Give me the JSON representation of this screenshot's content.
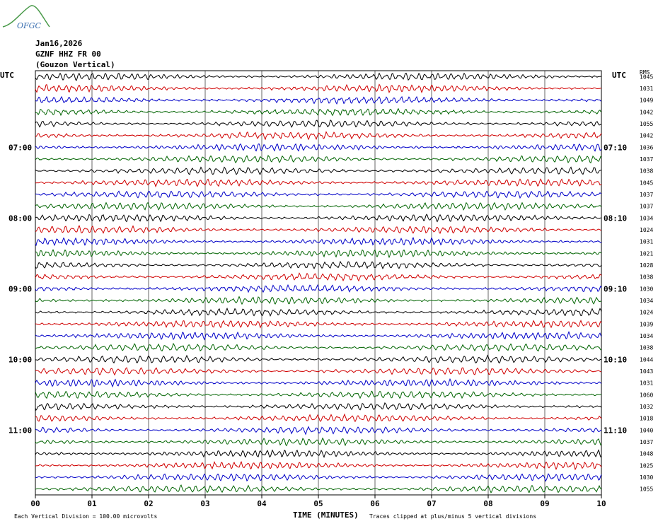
{
  "logo": {
    "text": "OFGC",
    "color": "#3a6fb0",
    "mountain_color": "#4a9a4a"
  },
  "header": {
    "date": "Jan16,2026",
    "station": "GZNF HHZ FR 00",
    "location": "(Gouzon Vertical)"
  },
  "chart_data": {
    "type": "line",
    "title": "",
    "xlabel": "TIME (MINUTES)",
    "ylabel": "UTC",
    "x_ticks": [
      "00",
      "01",
      "02",
      "03",
      "04",
      "05",
      "06",
      "07",
      "08",
      "09",
      "10"
    ],
    "xlim": [
      0,
      10
    ],
    "left_axis_title": "UTC",
    "right_axis_title": "UTC",
    "rms_title": "RMS",
    "left_time_labels": [
      {
        "row": 6,
        "label": "07:00"
      },
      {
        "row": 12,
        "label": "08:00"
      },
      {
        "row": 18,
        "label": "09:00"
      },
      {
        "row": 24,
        "label": "10:00"
      },
      {
        "row": 30,
        "label": "11:00"
      }
    ],
    "right_time_labels": [
      {
        "row": 6,
        "label": "07:10"
      },
      {
        "row": 12,
        "label": "08:10"
      },
      {
        "row": 18,
        "label": "09:10"
      },
      {
        "row": 24,
        "label": "10:10"
      },
      {
        "row": 30,
        "label": "11:10"
      }
    ],
    "row_colors": [
      "#000000",
      "#d00000",
      "#0000c8",
      "#006400"
    ],
    "trace_count": 36,
    "rms_values": [
      "1045",
      "1031",
      "1049",
      "1042",
      "1055",
      "1042",
      "1036",
      "1037",
      "1038",
      "1045",
      "1037",
      "1037",
      "1034",
      "1024",
      "1031",
      "1021",
      "1028",
      "1038",
      "1030",
      "1034",
      "1024",
      "1039",
      "1034",
      "1038",
      "1044",
      "1043",
      "1031",
      "1060",
      "1032",
      "1018",
      "1040",
      "1037",
      "1048",
      "1025",
      "1030",
      "1055"
    ],
    "grid": true
  },
  "footer": {
    "scale_note": "Each Vertical Division =  100.00 microvolts",
    "clip_note": "Traces clipped at plus/minus 5 vertical divisions"
  }
}
